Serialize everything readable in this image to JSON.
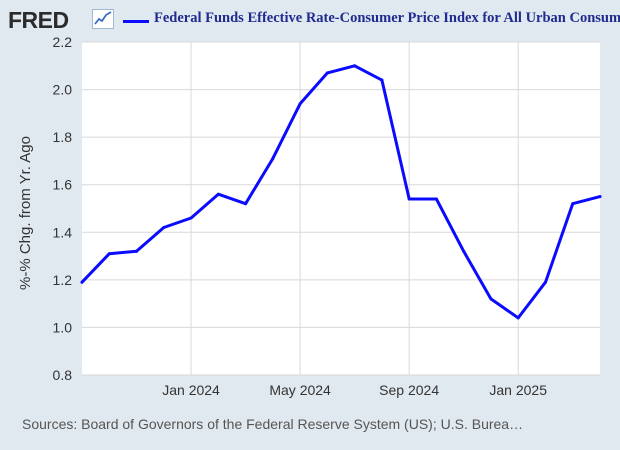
{
  "header": {
    "logo_text": "FRED",
    "logo_icon": "line-chart-icon",
    "legend_label": "Federal Funds Effective Rate-Consumer Price Index for All Urban Consumers"
  },
  "footer": {
    "sources": "Sources: Board of Governors of the Federal Reserve System (US); U.S. Burea…"
  },
  "colors": {
    "series": "#0b0bff",
    "plot_bg": "#ffffff",
    "page_bg": "#e1e9f0",
    "grid": "#d8d8d8"
  },
  "chart_data": {
    "type": "line",
    "title": "",
    "xlabel": "",
    "ylabel": "%-% Chg. from Yr. Ago",
    "ylim": [
      0.8,
      2.2
    ],
    "yticks": [
      0.8,
      1.0,
      1.2,
      1.4,
      1.6,
      1.8,
      2.0,
      2.2
    ],
    "ytick_labels": [
      "0.8",
      "1.0",
      "1.2",
      "1.4",
      "1.6",
      "1.8",
      "2.0",
      "2.2"
    ],
    "xlim": [
      "2023-09",
      "2025-04"
    ],
    "xticks": [
      "2024-01",
      "2024-05",
      "2024-09",
      "2025-01"
    ],
    "xtick_labels": [
      "Jan 2024",
      "May 2024",
      "Sep 2024",
      "Jan 2025"
    ],
    "grid": true,
    "legend": "top",
    "series": [
      {
        "name": "Federal Funds Effective Rate-Consumer Price Index for All Urban Consumers",
        "x": [
          "2023-09",
          "2023-10",
          "2023-11",
          "2023-12",
          "2024-01",
          "2024-02",
          "2024-03",
          "2024-04",
          "2024-05",
          "2024-06",
          "2024-07",
          "2024-08",
          "2024-09",
          "2024-10",
          "2024-11",
          "2024-12",
          "2025-01",
          "2025-02",
          "2025-03",
          "2025-04"
        ],
        "values": [
          1.19,
          1.31,
          1.32,
          1.42,
          1.46,
          1.56,
          1.52,
          1.71,
          1.94,
          2.07,
          2.1,
          2.04,
          1.54,
          1.54,
          1.32,
          1.12,
          1.04,
          1.19,
          1.52,
          1.55
        ]
      }
    ]
  }
}
